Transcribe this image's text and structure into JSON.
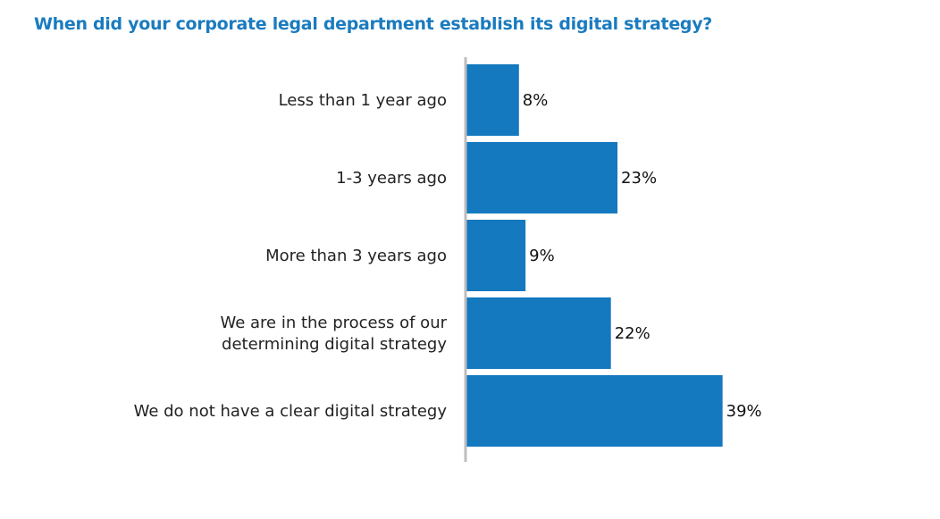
{
  "chart_data": {
    "type": "bar",
    "orientation": "horizontal",
    "title": "When did your corporate legal department establish its digital strategy?",
    "categories": [
      "Less than 1 year ago",
      "1-3 years ago",
      "More than 3 years ago",
      "We are in the process of determining our digital strategy",
      "We do not have a clear digital strategy"
    ],
    "values": [
      8,
      23,
      9,
      22,
      39
    ],
    "value_labels": [
      "8%",
      "23%",
      "9%",
      "22%",
      "39%"
    ],
    "unit": "%",
    "xlim": [
      0,
      100
    ],
    "grid": false,
    "colors": {
      "bar": "#1479be",
      "title": "#1a7bbf",
      "axis": "#bdbdbd"
    }
  }
}
